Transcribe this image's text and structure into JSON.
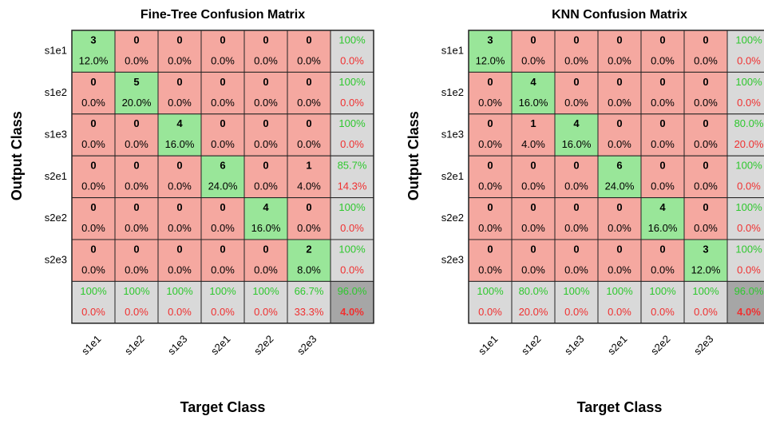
{
  "chart_data": [
    {
      "type": "confusion",
      "title": "Fine-Tree Confusion Matrix",
      "xlabel": "Target Class",
      "ylabel": "Output Class",
      "categories": [
        "s1e1",
        "s1e2",
        "s1e3",
        "s2e1",
        "s2e2",
        "s2e3"
      ],
      "counts": [
        [
          3,
          0,
          0,
          0,
          0,
          0
        ],
        [
          0,
          5,
          0,
          0,
          0,
          0
        ],
        [
          0,
          0,
          4,
          0,
          0,
          0
        ],
        [
          0,
          0,
          0,
          6,
          0,
          1
        ],
        [
          0,
          0,
          0,
          0,
          4,
          0
        ],
        [
          0,
          0,
          0,
          0,
          0,
          2
        ]
      ],
      "percents": [
        [
          12.0,
          0,
          0,
          0,
          0,
          0
        ],
        [
          0,
          20.0,
          0,
          0,
          0,
          0
        ],
        [
          0,
          0,
          16.0,
          0,
          0,
          0
        ],
        [
          0,
          0,
          0,
          24.0,
          0,
          4.0
        ],
        [
          0,
          0,
          0,
          0,
          16.0,
          0
        ],
        [
          0,
          0,
          0,
          0,
          0,
          8.0
        ]
      ],
      "percent_labels": [
        [
          "12.0%",
          "0.0%",
          "0.0%",
          "0.0%",
          "0.0%",
          "0.0%"
        ],
        [
          "0.0%",
          "20.0%",
          "0.0%",
          "0.0%",
          "0.0%",
          "0.0%"
        ],
        [
          "0.0%",
          "0.0%",
          "16.0%",
          "0.0%",
          "0.0%",
          "0.0%"
        ],
        [
          "0.0%",
          "0.0%",
          "0.0%",
          "24.0%",
          "0.0%",
          "4.0%"
        ],
        [
          "0.0%",
          "0.0%",
          "0.0%",
          "0.0%",
          "16.0%",
          "0.0%"
        ],
        [
          "0.0%",
          "0.0%",
          "0.0%",
          "0.0%",
          "0.0%",
          "8.0%"
        ]
      ],
      "row_correct": [
        100,
        100,
        100,
        85.7,
        100,
        100
      ],
      "row_correct_labels": [
        "100%",
        "100%",
        "100%",
        "85.7%",
        "100%",
        "100%"
      ],
      "row_error": [
        0,
        0,
        0,
        14.3,
        0,
        0
      ],
      "row_error_labels": [
        "0.0%",
        "0.0%",
        "0.0%",
        "14.3%",
        "0.0%",
        "0.0%"
      ],
      "col_correct": [
        100,
        100,
        100,
        100,
        100,
        66.7
      ],
      "col_correct_labels": [
        "100%",
        "100%",
        "100%",
        "100%",
        "100%",
        "66.7%"
      ],
      "col_error": [
        0,
        0,
        0,
        0,
        0,
        33.3
      ],
      "col_error_labels": [
        "0.0%",
        "0.0%",
        "0.0%",
        "0.0%",
        "0.0%",
        "33.3%"
      ],
      "overall_correct": 96.0,
      "overall_correct_label": "96.0%",
      "overall_error": 4.0,
      "overall_error_label": "4.0%",
      "colors": {
        "correct": "#99e699",
        "wrong": "#f5a8a0",
        "summary": "#d9d9d9",
        "overall": "#a6a6a6",
        "good_text": "#2ec82e",
        "bad_text": "#f03030"
      }
    },
    {
      "type": "confusion",
      "title": "KNN Confusion Matrix",
      "xlabel": "Target Class",
      "ylabel": "Output Class",
      "categories": [
        "s1e1",
        "s1e2",
        "s1e3",
        "s2e1",
        "s2e2",
        "s2e3"
      ],
      "counts": [
        [
          3,
          0,
          0,
          0,
          0,
          0
        ],
        [
          0,
          4,
          0,
          0,
          0,
          0
        ],
        [
          0,
          1,
          4,
          0,
          0,
          0
        ],
        [
          0,
          0,
          0,
          6,
          0,
          0
        ],
        [
          0,
          0,
          0,
          0,
          4,
          0
        ],
        [
          0,
          0,
          0,
          0,
          0,
          3
        ]
      ],
      "percents": [
        [
          12.0,
          0,
          0,
          0,
          0,
          0
        ],
        [
          0,
          16.0,
          0,
          0,
          0,
          0
        ],
        [
          0,
          4.0,
          16.0,
          0,
          0,
          0
        ],
        [
          0,
          0,
          0,
          24.0,
          0,
          0
        ],
        [
          0,
          0,
          0,
          0,
          16.0,
          0
        ],
        [
          0,
          0,
          0,
          0,
          0,
          12.0
        ]
      ],
      "percent_labels": [
        [
          "12.0%",
          "0.0%",
          "0.0%",
          "0.0%",
          "0.0%",
          "0.0%"
        ],
        [
          "0.0%",
          "16.0%",
          "0.0%",
          "0.0%",
          "0.0%",
          "0.0%"
        ],
        [
          "0.0%",
          "4.0%",
          "16.0%",
          "0.0%",
          "0.0%",
          "0.0%"
        ],
        [
          "0.0%",
          "0.0%",
          "0.0%",
          "24.0%",
          "0.0%",
          "0.0%"
        ],
        [
          "0.0%",
          "0.0%",
          "0.0%",
          "0.0%",
          "16.0%",
          "0.0%"
        ],
        [
          "0.0%",
          "0.0%",
          "0.0%",
          "0.0%",
          "0.0%",
          "12.0%"
        ]
      ],
      "row_correct": [
        100,
        100,
        80.0,
        100,
        100,
        100
      ],
      "row_correct_labels": [
        "100%",
        "100%",
        "80.0%",
        "100%",
        "100%",
        "100%"
      ],
      "row_error": [
        0,
        0,
        20.0,
        0,
        0,
        0
      ],
      "row_error_labels": [
        "0.0%",
        "0.0%",
        "20.0%",
        "0.0%",
        "0.0%",
        "0.0%"
      ],
      "col_correct": [
        100,
        80.0,
        100,
        100,
        100,
        100
      ],
      "col_correct_labels": [
        "100%",
        "80.0%",
        "100%",
        "100%",
        "100%",
        "100%"
      ],
      "col_error": [
        0,
        20.0,
        0,
        0,
        0,
        0
      ],
      "col_error_labels": [
        "0.0%",
        "20.0%",
        "0.0%",
        "0.0%",
        "0.0%",
        "0.0%"
      ],
      "overall_correct": 96.0,
      "overall_correct_label": "96.0%",
      "overall_error": 4.0,
      "overall_error_label": "4.0%",
      "colors": {
        "correct": "#99e699",
        "wrong": "#f5a8a0",
        "summary": "#d9d9d9",
        "overall": "#a6a6a6",
        "good_text": "#2ec82e",
        "bad_text": "#f03030"
      }
    }
  ]
}
